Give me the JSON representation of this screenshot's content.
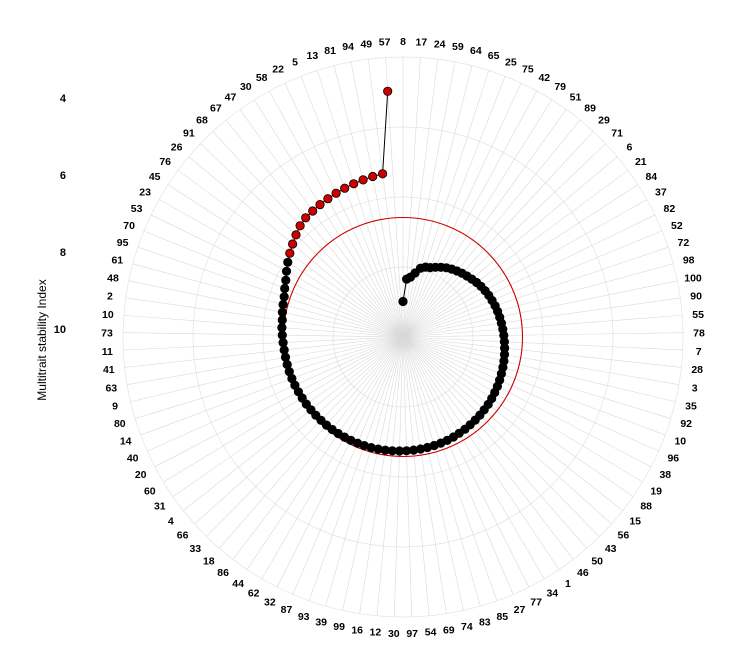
{
  "chart_data": {
    "type": "scatter",
    "ylabel": "Multitrait stability Index",
    "y_ticks": [
      4,
      6,
      8,
      10
    ],
    "r_max": 11.83,
    "selection_threshold": 5.05,
    "categories": [
      8,
      17,
      24,
      59,
      64,
      65,
      25,
      75,
      42,
      79,
      51,
      89,
      29,
      71,
      6,
      21,
      84,
      37,
      82,
      52,
      72,
      98,
      100,
      90,
      55,
      78,
      7,
      28,
      3,
      35,
      92,
      10,
      96,
      38,
      19,
      88,
      15,
      56,
      43,
      50,
      46,
      1,
      34,
      77,
      27,
      85,
      83,
      74,
      69,
      54,
      97,
      30,
      12,
      16,
      99,
      39,
      93,
      87,
      32,
      62,
      44,
      86,
      18,
      33,
      66,
      4,
      31,
      60,
      20,
      40,
      14,
      80,
      9,
      63,
      41,
      11,
      73,
      10,
      2,
      48,
      61,
      95,
      70,
      53,
      23,
      45,
      76,
      26,
      91,
      68,
      67,
      47,
      30,
      58,
      22,
      5,
      13,
      81,
      94,
      49,
      57
    ],
    "selected_count": 15,
    "values": [
      1.5,
      2.45,
      2.55,
      2.75,
      3.0,
      3.1,
      3.15,
      3.25,
      3.35,
      3.45,
      3.53,
      3.6,
      3.67,
      3.73,
      3.8,
      3.87,
      3.93,
      3.98,
      4.03,
      4.07,
      4.11,
      4.14,
      4.17,
      4.2,
      4.23,
      4.26,
      4.29,
      4.32,
      4.35,
      4.38,
      4.41,
      4.44,
      4.47,
      4.5,
      4.53,
      4.56,
      4.59,
      4.61,
      4.63,
      4.65,
      4.67,
      4.69,
      4.71,
      4.73,
      4.75,
      4.76,
      4.77,
      4.78,
      4.79,
      4.8,
      4.81,
      4.82,
      4.83,
      4.84,
      4.85,
      4.86,
      4.87,
      4.88,
      4.89,
      4.9,
      4.91,
      4.92,
      4.93,
      4.94,
      4.95,
      4.96,
      4.97,
      4.98,
      4.99,
      5.0,
      5.01,
      5.02,
      5.03,
      5.04,
      5.05,
      5.07,
      5.1,
      5.13,
      5.15,
      5.2,
      5.25,
      5.3,
      5.4,
      5.5,
      5.65,
      5.8,
      5.95,
      6.1,
      6.25,
      6.4,
      6.5,
      6.55,
      6.6,
      6.65,
      6.7,
      6.75,
      6.8,
      6.85,
      6.9,
      6.95,
      10.4
    ],
    "grid": true,
    "colors": {
      "selected": "#cc0000",
      "unselected": "#000000",
      "threshold": "#cc0000",
      "grid": "#d9d9d9"
    }
  }
}
